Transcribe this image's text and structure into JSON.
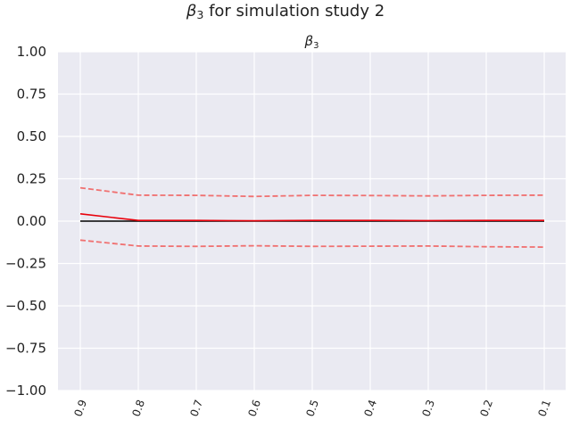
{
  "figure": {
    "suptitle": "for simulation study 2",
    "suptitle_symbol": "β",
    "suptitle_subscript": "3"
  },
  "chart_data": {
    "type": "line",
    "title_symbol": "β",
    "title_subscript": "3",
    "x": [
      "0.9",
      "0.8",
      "0.7",
      "0.6",
      "0.5",
      "0.4",
      "0.3",
      "0.2",
      "0.1"
    ],
    "xtick_labels": [
      "0.9",
      "0.8",
      "0.7",
      "0.6",
      "0.5",
      "0.4",
      "0.3",
      "0.2",
      "0.1"
    ],
    "ylim": [
      -1.0,
      1.0
    ],
    "yticks": [
      1.0,
      0.75,
      0.5,
      0.25,
      0.0,
      -0.25,
      -0.5,
      -0.75,
      -1.0
    ],
    "ytick_labels": [
      "1.00",
      "0.75",
      "0.50",
      "0.25",
      "0.00",
      "−0.25",
      "−0.50",
      "−0.75",
      "−1.00"
    ],
    "grid": true,
    "background": "#eaeaf2",
    "series": [
      {
        "values": [
          0.197,
          0.153,
          0.152,
          0.146,
          0.152,
          0.151,
          0.149,
          0.152,
          0.153
        ],
        "color": "#f07070",
        "style": "dashed"
      },
      {
        "values": [
          -0.112,
          -0.147,
          -0.149,
          -0.145,
          -0.149,
          -0.148,
          -0.147,
          -0.151,
          -0.153
        ],
        "color": "#f07070",
        "style": "dashed"
      },
      {
        "values": [
          0.0,
          0.0,
          0.0,
          0.0,
          0.0,
          0.0,
          0.0,
          0.0,
          0.0
        ],
        "color": "#000000",
        "style": "solid"
      },
      {
        "values": [
          0.043,
          0.004,
          0.004,
          0.002,
          0.004,
          0.004,
          0.003,
          0.004,
          0.004
        ],
        "color": "#e8000b",
        "style": "solid"
      }
    ]
  }
}
